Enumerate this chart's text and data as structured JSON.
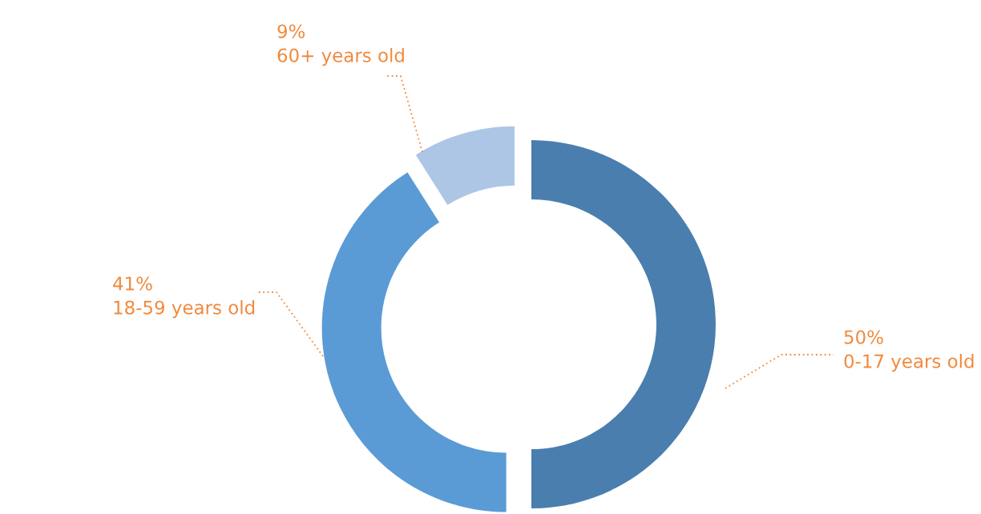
{
  "chart_data": {
    "type": "donut",
    "categories": [
      "0-17 years old",
      "18-59 years old",
      "60+ years old"
    ],
    "values": [
      50,
      41,
      9
    ],
    "value_labels": [
      "50%",
      "41%",
      "9%"
    ],
    "colors": [
      "#4a7eae",
      "#5b9bd5",
      "#adc6e6"
    ],
    "legend": false
  }
}
